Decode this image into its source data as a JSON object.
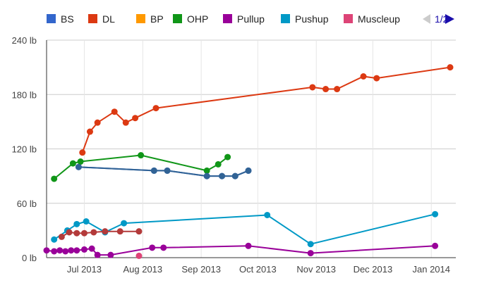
{
  "chart_data": {
    "type": "line",
    "title": "",
    "xlabel": "",
    "ylabel": "",
    "ylim": [
      0,
      240
    ],
    "y_unit": "lb",
    "y_ticks": [
      0,
      60,
      120,
      180,
      240
    ],
    "y_tick_labels": [
      "0 lb",
      "60 lb",
      "120 lb",
      "180 lb",
      "240 lb"
    ],
    "x_range": [
      "2013-06-11",
      "2014-01-14"
    ],
    "x_ticks": [
      "2013-07-01",
      "2013-08-01",
      "2013-09-01",
      "2013-10-01",
      "2013-11-01",
      "2013-12-01",
      "2014-01-01"
    ],
    "x_tick_labels": [
      "Jul 2013",
      "Aug 2013",
      "Sep 2013",
      "Oct 2013",
      "Nov 2013",
      "Dec 2013",
      "Jan 2014"
    ],
    "grid": true,
    "legend_position": "top",
    "legend_page": "1/2",
    "series": [
      {
        "name": "BS",
        "color": "#3366cc",
        "points": [
          [
            "2013-06-28",
            100
          ],
          [
            "2013-08-07",
            96
          ],
          [
            "2013-08-14",
            96
          ],
          [
            "2013-09-04",
            90
          ],
          [
            "2013-09-12",
            90
          ],
          [
            "2013-09-19",
            90
          ],
          [
            "2013-09-26",
            96
          ]
        ]
      },
      {
        "name": "DL",
        "color": "#dc3912",
        "points": [
          [
            "2013-06-30",
            116
          ],
          [
            "2013-07-04",
            139
          ],
          [
            "2013-07-08",
            149
          ],
          [
            "2013-07-17",
            161
          ],
          [
            "2013-07-23",
            149
          ],
          [
            "2013-07-28",
            154
          ],
          [
            "2013-08-08",
            165
          ],
          [
            "2013-10-30",
            188
          ],
          [
            "2013-11-06",
            186
          ],
          [
            "2013-11-12",
            186
          ],
          [
            "2013-11-26",
            200
          ],
          [
            "2013-12-03",
            198
          ],
          [
            "2014-01-11",
            210
          ]
        ]
      },
      {
        "name": "BP",
        "color": "#ff9900",
        "points": []
      },
      {
        "name": "OHP",
        "color": "#109618",
        "points": [
          [
            "2013-06-15",
            87
          ],
          [
            "2013-06-25",
            104
          ],
          [
            "2013-06-29",
            106
          ],
          [
            "2013-07-31",
            113
          ],
          [
            "2013-09-04",
            96
          ],
          [
            "2013-09-10",
            103
          ],
          [
            "2013-09-15",
            111
          ]
        ]
      },
      {
        "name": "Pullup",
        "color": "#990099",
        "points": [
          [
            "2013-06-11",
            8
          ],
          [
            "2013-06-15",
            7
          ],
          [
            "2013-06-18",
            8
          ],
          [
            "2013-06-21",
            7
          ],
          [
            "2013-06-24",
            8
          ],
          [
            "2013-06-27",
            8
          ],
          [
            "2013-07-01",
            9
          ],
          [
            "2013-07-05",
            10
          ],
          [
            "2013-07-08",
            3
          ],
          [
            "2013-07-15",
            3
          ],
          [
            "2013-08-06",
            11
          ],
          [
            "2013-08-12",
            11
          ],
          [
            "2013-09-26",
            13
          ],
          [
            "2013-10-29",
            5
          ],
          [
            "2014-01-03",
            13
          ]
        ]
      },
      {
        "name": "Pushup",
        "color": "#0099c6",
        "points": [
          [
            "2013-06-15",
            20
          ],
          [
            "2013-06-22",
            30
          ],
          [
            "2013-06-27",
            37
          ],
          [
            "2013-07-02",
            40
          ],
          [
            "2013-07-12",
            28
          ],
          [
            "2013-07-22",
            38
          ],
          [
            "2013-10-06",
            47
          ],
          [
            "2013-10-29",
            15
          ],
          [
            "2014-01-03",
            48
          ]
        ]
      },
      {
        "name": "Muscleup",
        "color": "#dd4477",
        "points": [
          [
            "2013-07-30",
            2
          ]
        ]
      },
      {
        "name": "",
        "color": "#b33a3a",
        "points": [
          [
            "2013-06-19",
            23
          ],
          [
            "2013-06-23",
            28
          ],
          [
            "2013-06-27",
            27
          ],
          [
            "2013-07-01",
            27
          ],
          [
            "2013-07-06",
            28
          ],
          [
            "2013-07-12",
            29
          ],
          [
            "2013-07-20",
            29
          ],
          [
            "2013-07-30",
            29
          ]
        ]
      },
      {
        "name": "",
        "color": "#316395",
        "points": [
          [
            "2013-06-28",
            100
          ],
          [
            "2013-08-07",
            96
          ],
          [
            "2013-08-14",
            96
          ],
          [
            "2013-09-04",
            90
          ],
          [
            "2013-09-12",
            90
          ],
          [
            "2013-09-19",
            90
          ],
          [
            "2013-09-26",
            96
          ]
        ]
      }
    ]
  },
  "legend": {
    "items": [
      {
        "label": "BS",
        "color": "#3366cc"
      },
      {
        "label": "DL",
        "color": "#dc3912"
      },
      {
        "label": "BP",
        "color": "#ff9900"
      },
      {
        "label": "OHP",
        "color": "#109618"
      },
      {
        "label": "Pullup",
        "color": "#990099"
      },
      {
        "label": "Pushup",
        "color": "#0099c6"
      },
      {
        "label": "Muscleup",
        "color": "#dd4477"
      }
    ],
    "page_label": "1/2",
    "prev_icon": "triangle-left-icon",
    "next_icon": "triangle-right-icon"
  }
}
